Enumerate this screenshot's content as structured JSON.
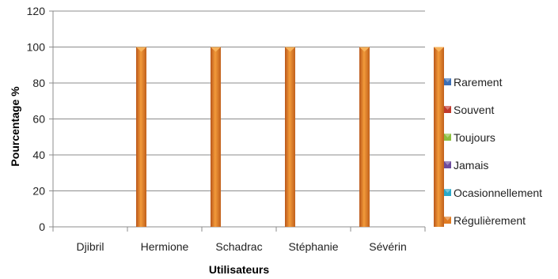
{
  "chart_data": {
    "type": "bar",
    "categories": [
      "Djibril",
      "Hermione",
      "Schadrac",
      "Stéphanie",
      "Sévérin"
    ],
    "series": [
      {
        "name": "Rarement",
        "values": [
          0,
          0,
          0,
          0,
          0
        ],
        "color": "#3c6fb5"
      },
      {
        "name": "Souvent",
        "values": [
          0,
          0,
          0,
          0,
          0
        ],
        "color": "#c0392b"
      },
      {
        "name": "Toujours",
        "values": [
          0,
          0,
          0,
          0,
          0
        ],
        "color": "#8cbf3f"
      },
      {
        "name": "Jamais",
        "values": [
          0,
          0,
          0,
          0,
          0
        ],
        "color": "#6d4c9e"
      },
      {
        "name": "Ocasionnellement",
        "values": [
          0,
          0,
          0,
          0,
          0
        ],
        "color": "#2aa9c9"
      },
      {
        "name": "Régulièrement",
        "values": [
          100,
          100,
          100,
          100,
          100
        ],
        "color": "#e07b22"
      }
    ],
    "title": "",
    "xlabel": "Utilisateurs",
    "ylabel": "Pourcentage %",
    "ylim": [
      0,
      120
    ],
    "yticks": [
      "0",
      "20",
      "40",
      "60",
      "80",
      "100",
      "120"
    ],
    "grid": true,
    "legend_position": "right"
  }
}
